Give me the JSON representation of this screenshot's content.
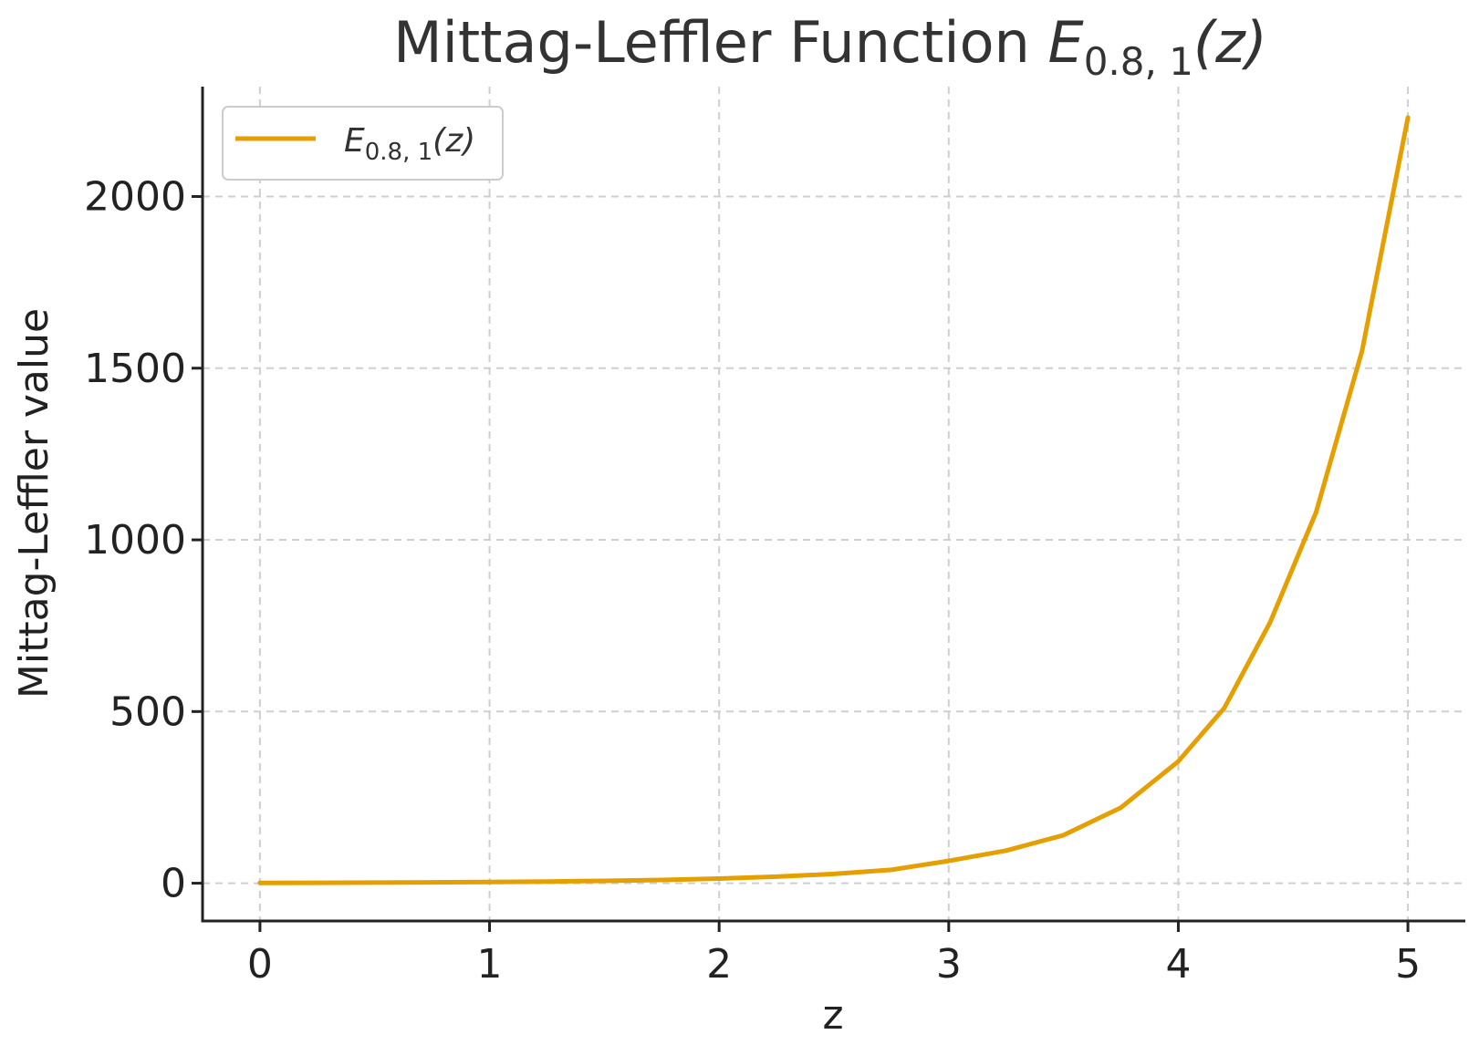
{
  "chart_data": {
    "type": "line",
    "title_main": "Mittag-Leffler Function ",
    "title_math": "E",
    "title_sub": "0.8, 1",
    "title_tail": "(z)",
    "xlabel": "z",
    "ylabel": "Mittag-Leffler value",
    "xlim": [
      -0.25,
      5.25
    ],
    "ylim": [
      -110,
      2320
    ],
    "xticks": [
      0,
      1,
      2,
      3,
      4,
      5
    ],
    "yticks": [
      0,
      500,
      1000,
      1500,
      2000
    ],
    "grid": true,
    "legend_position": "upper-left",
    "series": [
      {
        "name_math": "E",
        "name_sub": "0.8, 1",
        "name_tail": "(z)",
        "color": "#E69F00",
        "x": [
          0,
          0.25,
          0.5,
          0.75,
          1,
          1.25,
          1.5,
          1.75,
          2,
          2.25,
          2.5,
          2.75,
          3,
          3.25,
          3.5,
          3.75,
          4,
          4.2,
          4.4,
          4.6,
          4.8,
          5
        ],
        "y": [
          1,
          1.4,
          1.9,
          2.6,
          3.5,
          4.9,
          6.8,
          9.5,
          13.5,
          19,
          27,
          39,
          65,
          95,
          140,
          220,
          355,
          510,
          760,
          1080,
          1550,
          2230
        ]
      }
    ]
  }
}
